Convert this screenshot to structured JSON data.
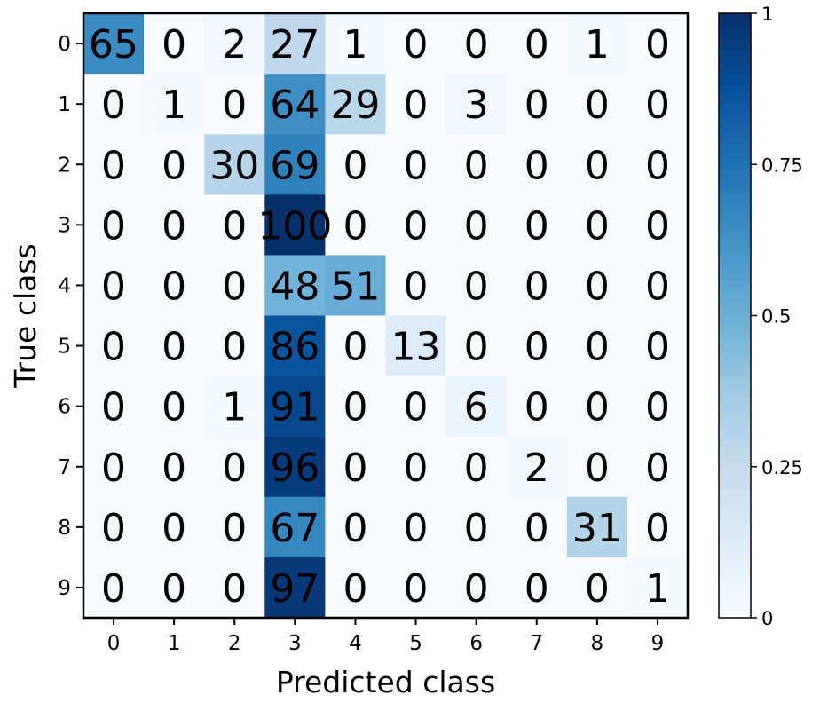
{
  "chart_data": {
    "type": "heatmap",
    "title": "",
    "xlabel": "Predicted class",
    "ylabel": "True class",
    "x_categories": [
      "0",
      "1",
      "2",
      "3",
      "4",
      "5",
      "6",
      "7",
      "8",
      "9"
    ],
    "y_categories": [
      "0",
      "1",
      "2",
      "3",
      "4",
      "5",
      "6",
      "7",
      "8",
      "9"
    ],
    "values": [
      [
        65,
        0,
        2,
        27,
        1,
        0,
        0,
        0,
        1,
        0
      ],
      [
        0,
        1,
        0,
        64,
        29,
        0,
        3,
        0,
        0,
        0
      ],
      [
        0,
        0,
        30,
        69,
        0,
        0,
        0,
        0,
        0,
        0
      ],
      [
        0,
        0,
        0,
        100,
        0,
        0,
        0,
        0,
        0,
        0
      ],
      [
        0,
        0,
        0,
        48,
        51,
        0,
        0,
        0,
        0,
        0
      ],
      [
        0,
        0,
        0,
        86,
        0,
        13,
        0,
        0,
        0,
        0
      ],
      [
        0,
        0,
        1,
        91,
        0,
        0,
        6,
        0,
        0,
        0
      ],
      [
        0,
        0,
        0,
        96,
        0,
        0,
        0,
        2,
        0,
        0
      ],
      [
        0,
        0,
        0,
        67,
        0,
        0,
        0,
        0,
        31,
        0
      ],
      [
        0,
        0,
        0,
        97,
        0,
        0,
        0,
        0,
        0,
        1
      ]
    ],
    "value_range": [
      0,
      100
    ],
    "colormap": "Blues",
    "colormap_low": "#f7fbff",
    "colormap_high": "#08306b",
    "colorbar": {
      "range": [
        0,
        1
      ],
      "ticks": [
        0,
        0.25,
        0.5,
        0.75,
        1
      ],
      "tick_labels": [
        "0",
        "0.25",
        "0.5",
        "0.75",
        "1"
      ]
    },
    "grid": false,
    "legend": "colorbar-right"
  }
}
